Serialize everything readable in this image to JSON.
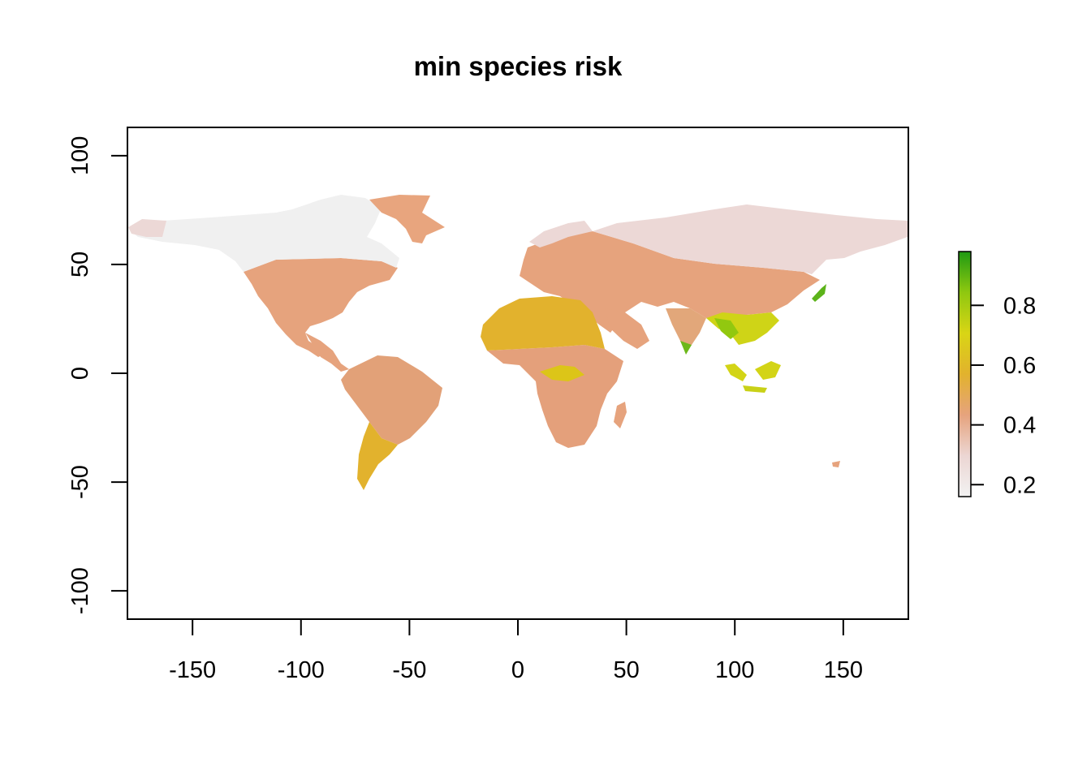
{
  "title": "min species risk",
  "map": {
    "x_ticks": [
      -150,
      -100,
      -50,
      0,
      50,
      100,
      150
    ],
    "y_ticks": [
      -100,
      -50,
      0,
      50,
      100
    ],
    "xlim": [
      -180,
      180
    ],
    "ylim": [
      -113,
      113
    ],
    "colors": {
      "greenland_arctic": "#e8a57e",
      "canada_north": "#f0f0f0",
      "russia_north": "#ecd8d6",
      "temperate": "#e6a37d",
      "sahara": "#e2b22d",
      "patagonia": "#e2b22d",
      "congo": "#dcc518",
      "se_asia_yellow": "#d3d416",
      "se_asia_green": "#92c80f",
      "india_green": "#6cb81a"
    }
  },
  "legend": {
    "ticks": [
      "0.2",
      "0.4",
      "0.6",
      "0.8"
    ],
    "tick_values": [
      0.2,
      0.4,
      0.6,
      0.8
    ],
    "range": [
      0.16,
      0.98
    ],
    "color_stops": [
      "#f2f2f2",
      "#ecd6d3",
      "#e6a37d",
      "#e2b22d",
      "#d9d515",
      "#8fc810",
      "#1f9a13"
    ]
  }
}
